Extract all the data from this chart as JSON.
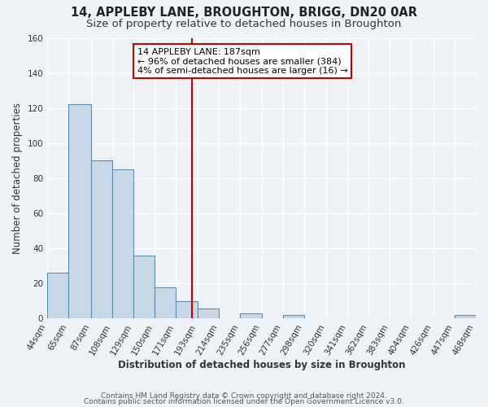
{
  "title": "14, APPLEBY LANE, BROUGHTON, BRIGG, DN20 0AR",
  "subtitle": "Size of property relative to detached houses in Broughton",
  "xlabel": "Distribution of detached houses by size in Broughton",
  "ylabel": "Number of detached properties",
  "bin_edges": [
    44,
    65,
    87,
    108,
    129,
    150,
    171,
    193,
    214,
    235,
    256,
    277,
    298,
    320,
    341,
    362,
    383,
    404,
    426,
    447,
    468
  ],
  "bin_labels": [
    "44sqm",
    "65sqm",
    "87sqm",
    "108sqm",
    "129sqm",
    "150sqm",
    "171sqm",
    "193sqm",
    "214sqm",
    "235sqm",
    "256sqm",
    "277sqm",
    "298sqm",
    "320sqm",
    "341sqm",
    "362sqm",
    "383sqm",
    "404sqm",
    "426sqm",
    "447sqm",
    "468sqm"
  ],
  "counts": [
    26,
    122,
    90,
    85,
    36,
    18,
    10,
    6,
    0,
    3,
    0,
    2,
    0,
    0,
    0,
    0,
    0,
    0,
    0,
    2
  ],
  "bar_color": "#c8d8e8",
  "bar_edge_color": "#5b8db0",
  "vline_x": 187,
  "vline_color": "#cc0000",
  "annotation_title": "14 APPLEBY LANE: 187sqm",
  "annotation_line1": "← 96% of detached houses are smaller (384)",
  "annotation_line2": "4% of semi-detached houses are larger (16) →",
  "annotation_box_facecolor": "white",
  "annotation_box_edgecolor": "#cc0000",
  "ylim": [
    0,
    160
  ],
  "yticks": [
    0,
    20,
    40,
    60,
    80,
    100,
    120,
    140,
    160
  ],
  "footer1": "Contains HM Land Registry data © Crown copyright and database right 2024.",
  "footer2": "Contains public sector information licensed under the Open Government Licence v3.0.",
  "bg_color": "#eef2f7",
  "grid_color": "#ffffff",
  "title_fontsize": 10.5,
  "subtitle_fontsize": 9.5,
  "axis_label_fontsize": 8.5,
  "tick_fontsize": 7.5,
  "annot_fontsize": 8,
  "footer_fontsize": 6.5
}
